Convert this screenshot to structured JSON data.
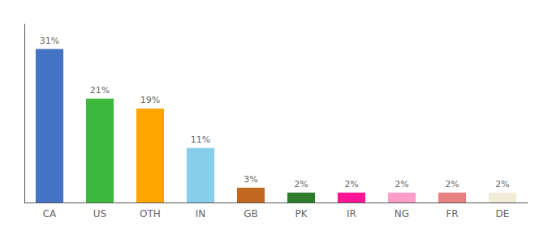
{
  "chart_data": {
    "type": "bar",
    "categories": [
      "CA",
      "US",
      "OTH",
      "IN",
      "GB",
      "PK",
      "IR",
      "NG",
      "FR",
      "DE"
    ],
    "values": [
      31,
      21,
      19,
      11,
      3,
      2,
      2,
      2,
      2,
      2
    ],
    "value_labels": [
      "31%",
      "21%",
      "19%",
      "11%",
      "3%",
      "2%",
      "2%",
      "2%",
      "2%",
      "2%"
    ],
    "colors": [
      "#4472C4",
      "#3CB93C",
      "#FFA500",
      "#87CEEB",
      "#C06820",
      "#2D7A2D",
      "#FF1493",
      "#FF9EC8",
      "#E88080",
      "#F0EDD8"
    ],
    "ylim": [
      0,
      36
    ],
    "data_labels": true,
    "tick_labels": "x",
    "grid": false
  }
}
